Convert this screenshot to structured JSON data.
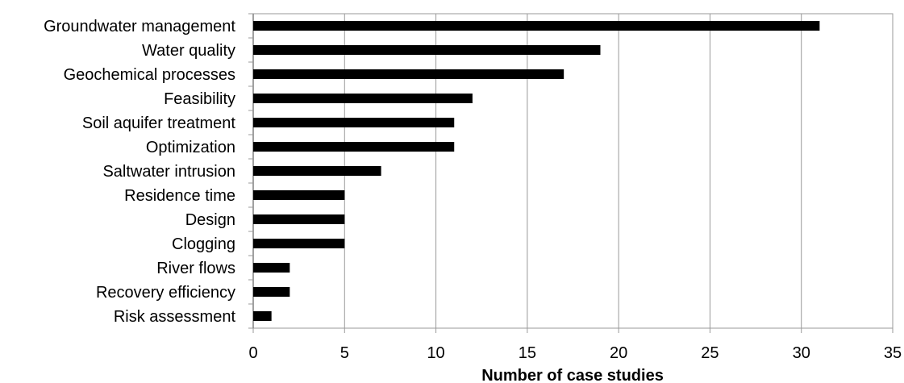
{
  "chart_data": {
    "type": "bar",
    "orientation": "horizontal",
    "categories": [
      "Groundwater management",
      "Water quality",
      "Geochemical processes",
      "Feasibility",
      "Soil aquifer treatment",
      "Optimization",
      "Saltwater intrusion",
      "Residence time",
      "Design",
      "Clogging ",
      "River flows",
      "Recovery efficiency",
      "Risk assessment"
    ],
    "values": [
      31,
      19,
      17,
      12,
      11,
      11,
      7,
      5,
      5,
      5,
      2,
      2,
      1
    ],
    "title": "",
    "xlabel": "Number of case studies",
    "ylabel": "",
    "xlim": [
      0,
      35
    ],
    "xticks": [
      0,
      5,
      10,
      15,
      20,
      25,
      30,
      35
    ],
    "grid": "vertical",
    "legend": "none",
    "colors": {
      "bar": "#000000",
      "grid": "#999999",
      "background": "#ffffff"
    }
  }
}
